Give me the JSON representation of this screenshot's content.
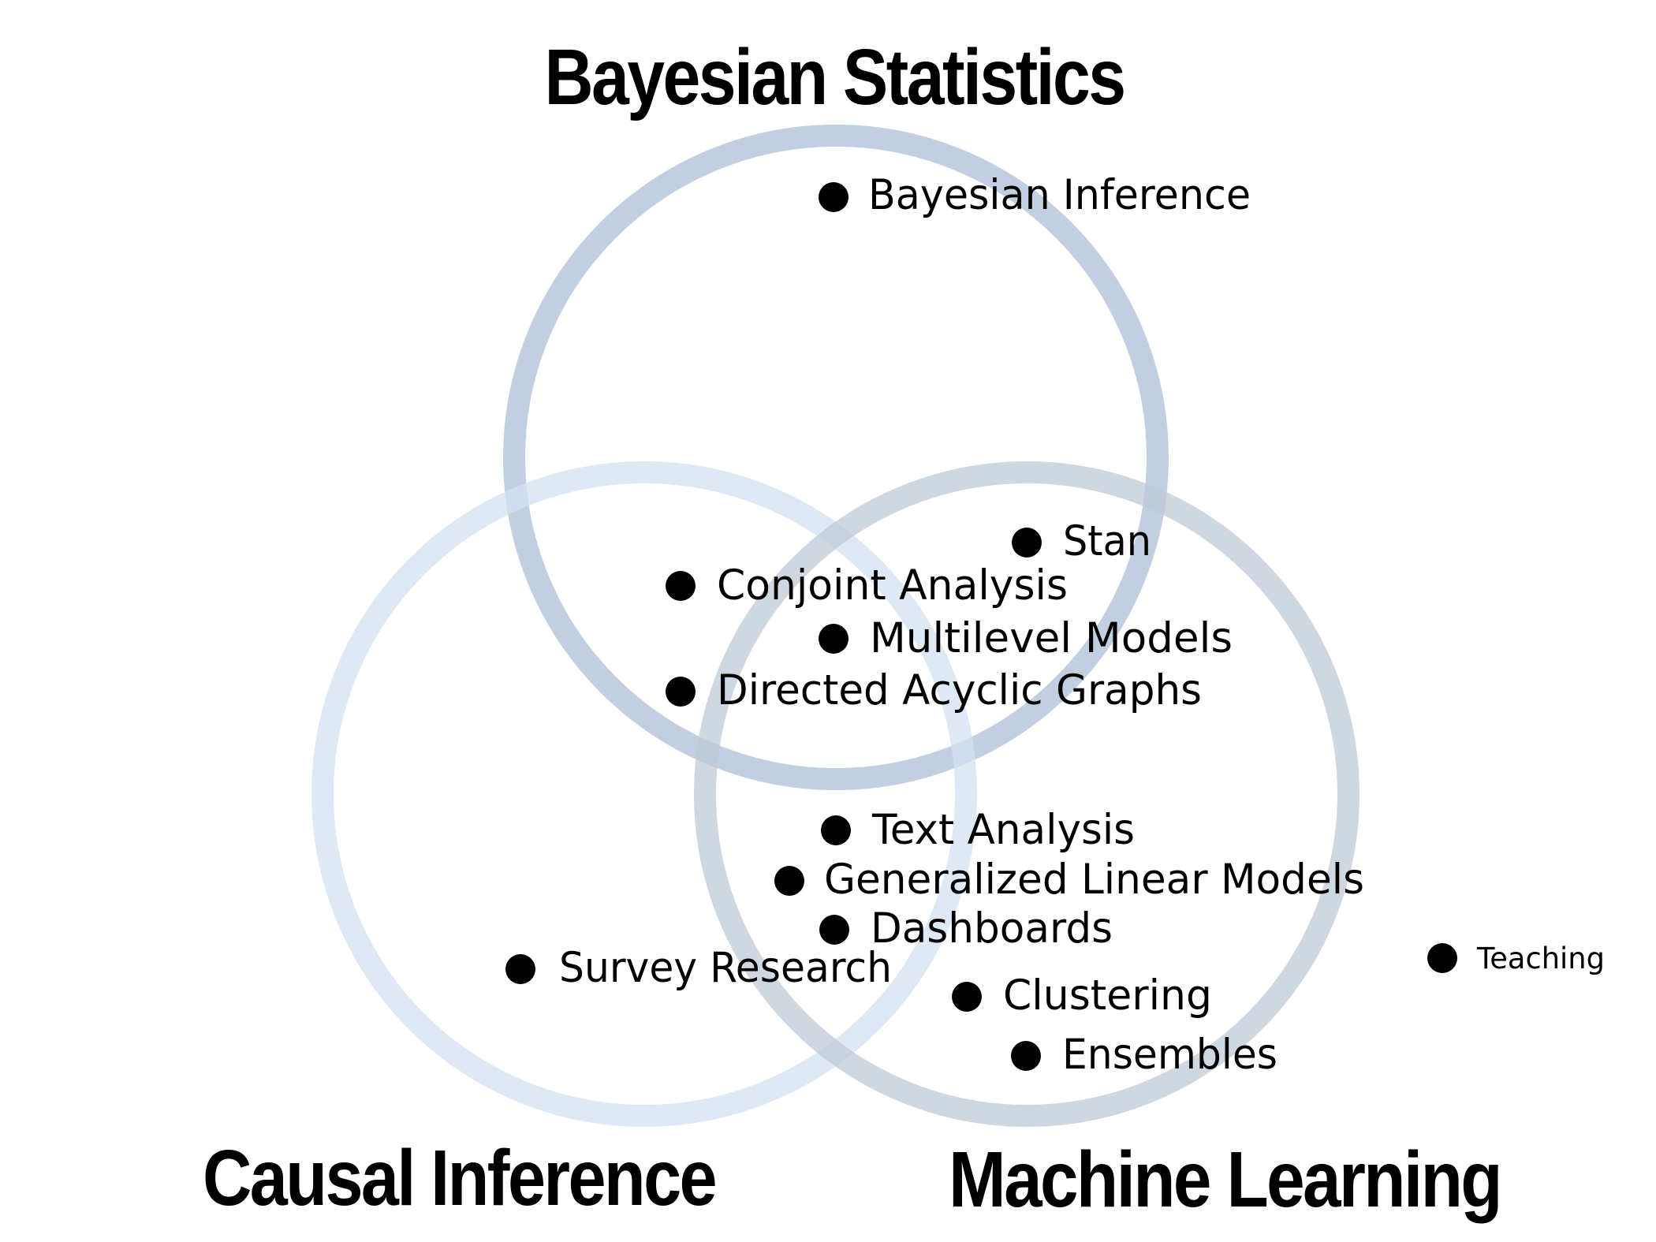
{
  "diagram": {
    "type": "venn-3",
    "sets": {
      "bayesian": {
        "title": "Bayesian Statistics",
        "color": "#B3C3D9"
      },
      "causal": {
        "title": "Causal Inference",
        "color": "#D3E1F2"
      },
      "ml": {
        "title": "Machine Learning",
        "color": "#BFC9D6"
      }
    },
    "items": [
      {
        "key": "bayesian_inference",
        "label": "Bayesian Inference"
      },
      {
        "key": "stan",
        "label": "Stan"
      },
      {
        "key": "conjoint",
        "label": "Conjoint Analysis"
      },
      {
        "key": "multilevel",
        "label": "Multilevel Models"
      },
      {
        "key": "dag",
        "label": "Directed Acyclic Graphs"
      },
      {
        "key": "text",
        "label": "Text Analysis"
      },
      {
        "key": "glm",
        "label": "Generalized Linear Models"
      },
      {
        "key": "dashboards",
        "label": "Dashboards"
      },
      {
        "key": "survey",
        "label": "Survey Research"
      },
      {
        "key": "clustering",
        "label": "Clustering"
      },
      {
        "key": "ensembles",
        "label": "Ensembles"
      },
      {
        "key": "teaching",
        "label": "Teaching"
      }
    ]
  }
}
